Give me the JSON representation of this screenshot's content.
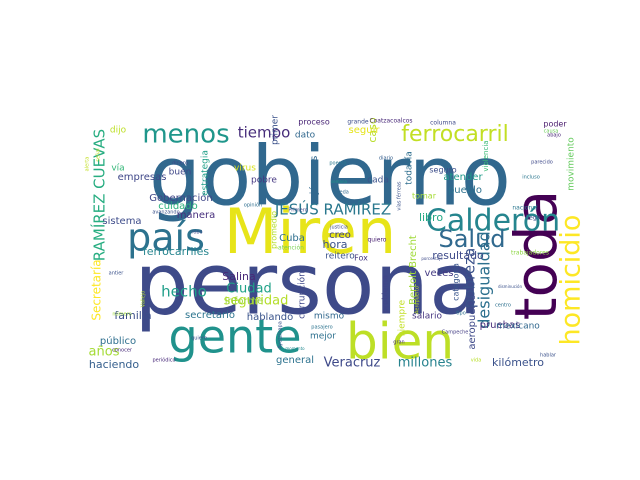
{
  "cloud": {
    "background": "#ffffff",
    "palette": "viridis",
    "words": [
      {
        "text": "gobierno",
        "color": "#31688e"
      },
      {
        "text": "persona",
        "color": "#3e4a89"
      },
      {
        "text": "Miren",
        "color": "#e7e419"
      },
      {
        "text": "toda",
        "color": "#440154"
      },
      {
        "text": "gente",
        "color": "#20928c"
      },
      {
        "text": "bien",
        "color": "#bddf26"
      },
      {
        "text": "país",
        "color": "#2c728e"
      },
      {
        "text": "Calderón",
        "color": "#25858e"
      },
      {
        "text": "homicidio",
        "color": "#fde725"
      },
      {
        "text": "Salud",
        "color": "#30698e"
      },
      {
        "text": "ferrocarril",
        "color": "#c2df23"
      },
      {
        "text": "menos",
        "color": "#1f968b"
      },
      {
        "text": "JESÚS RAMÍREZ",
        "color": "#2a788e"
      },
      {
        "text": "RAMÍREZ CUEVAS",
        "color": "#27ad81"
      },
      {
        "text": "desigualdad",
        "color": "#2d708e"
      },
      {
        "text": "pobreza",
        "color": "#3b528b"
      },
      {
        "text": "tiempo",
        "color": "#472d7b"
      },
      {
        "text": "seguridad",
        "color": "#b5de2b"
      },
      {
        "text": "Secretaría",
        "color": "#fde725"
      },
      {
        "text": "hecho",
        "color": "#1f9e89"
      },
      {
        "text": "millones",
        "color": "#26828e"
      },
      {
        "text": "Veracruz",
        "color": "#3e4989"
      },
      {
        "text": "Ciudad",
        "color": "#1fa187"
      },
      {
        "text": "años",
        "color": "#a5db36"
      },
      {
        "text": "haciendo",
        "color": "#355f8d"
      },
      {
        "text": "kilómetro",
        "color": "#3b528b"
      },
      {
        "text": "ferrocarriles",
        "color": "#25848e"
      },
      {
        "text": "familia",
        "color": "#3c4f8a"
      },
      {
        "text": "resultado",
        "color": "#3e4a89"
      },
      {
        "text": "Salina",
        "color": "#482878"
      },
      {
        "text": "hora",
        "color": "#3b528b"
      },
      {
        "text": "libro",
        "color": "#22a884"
      },
      {
        "text": "caso",
        "color": "#b8de29"
      },
      {
        "text": "seguir",
        "color": "#e5e419"
      },
      {
        "text": "jóvenes",
        "color": "#31688e"
      },
      {
        "text": "pruebas",
        "color": "#472c7a"
      },
      {
        "text": "secretario",
        "color": "#2b748e"
      },
      {
        "text": "Gobernación",
        "color": "#3f4788"
      },
      {
        "text": "hablando",
        "color": "#3a548c"
      },
      {
        "text": "mexicano",
        "color": "#31688e"
      },
      {
        "text": "Cuba",
        "color": "#2e6f8e"
      },
      {
        "text": "sistema",
        "color": "#3e4c8a"
      },
      {
        "text": "empresas",
        "color": "#3f4788"
      },
      {
        "text": "público",
        "color": "#2e6e8e"
      },
      {
        "text": "general",
        "color": "#2c728e"
      },
      {
        "text": "creo",
        "color": "#414487"
      },
      {
        "text": "pueblo",
        "color": "#2c718e"
      },
      {
        "text": "atender",
        "color": "#1f998a"
      },
      {
        "text": "cuidado",
        "color": "#2db27d"
      },
      {
        "text": "manera",
        "color": "#472f7d"
      },
      {
        "text": "veces",
        "color": "#443a83"
      },
      {
        "text": "aeropuerto",
        "color": "#3e4989"
      },
      {
        "text": "Bertolt Brecht",
        "color": "#a0da39"
      },
      {
        "text": "estrategia",
        "color": "#1f9f88"
      },
      {
        "text": "informe",
        "color": "#9dd93b"
      },
      {
        "text": "corrupción",
        "color": "#3f4889"
      },
      {
        "text": "salario",
        "color": "#453581"
      },
      {
        "text": "mismo",
        "color": "#31688e"
      },
      {
        "text": "reitero",
        "color": "#3b528b"
      },
      {
        "text": "mejor",
        "color": "#2d708e"
      },
      {
        "text": "siempre",
        "color": "#c2df23"
      },
      {
        "text": "movimiento",
        "color": "#65cb5e"
      },
      {
        "text": "dato",
        "color": "#31688e"
      },
      {
        "text": "proceso",
        "color": "#482475"
      },
      {
        "text": "poder",
        "color": "#481a6c"
      },
      {
        "text": "virus",
        "color": "#d8e219"
      },
      {
        "text": "cada",
        "color": "#3b528b"
      },
      {
        "text": "pobre",
        "color": "#453781"
      },
      {
        "text": "primer",
        "color": "#3b528b"
      },
      {
        "text": "buen",
        "color": "#3f4788"
      },
      {
        "text": "dijo",
        "color": "#bddf26"
      },
      {
        "text": "vía",
        "color": "#35b779"
      },
      {
        "text": "Fox",
        "color": "#453781"
      },
      {
        "text": "todavía",
        "color": "#2e6e8e"
      },
      {
        "text": "seguro",
        "color": "#3d4e8a"
      },
      {
        "text": "categoría",
        "color": "#39568c"
      },
      {
        "text": "problema",
        "color": "#414487"
      },
      {
        "text": "promedio",
        "color": "#b5de2b"
      },
      {
        "text": "Coatzacoalcos",
        "color": "#482878"
      },
      {
        "text": "grande",
        "color": "#3d4e8a"
      },
      {
        "text": "columna",
        "color": "#3e4989"
      },
      {
        "text": "tomar",
        "color": "#a5db36"
      },
      {
        "text": "violencia",
        "color": "#3aba76"
      },
      {
        "text": "nacional",
        "color": "#2a778e"
      },
      {
        "text": "trabajadores",
        "color": "#8ed645"
      },
      {
        "text": "atención",
        "color": "#7ad151"
      },
      {
        "text": "Primero",
        "color": "#3f4788"
      },
      {
        "text": "Campeche",
        "color": "#433d84"
      },
      {
        "text": "incluso",
        "color": "#2a768e"
      },
      {
        "text": "llegó",
        "color": "#3b528b"
      },
      {
        "text": "quiero",
        "color": "#482071"
      },
      {
        "text": "alerta",
        "color": "#c2df23"
      },
      {
        "text": "abajo",
        "color": "#482878"
      },
      {
        "text": "pasajero",
        "color": "#2c738e"
      },
      {
        "text": "vida",
        "color": "#b8de29"
      },
      {
        "text": "hablar",
        "color": "#3b528b"
      },
      {
        "text": "periódico",
        "color": "#482979"
      },
      {
        "text": "Ayotzinapa",
        "color": "#3b528b"
      },
      {
        "text": "diario",
        "color": "#355e8d"
      },
      {
        "text": "poema",
        "color": "#2a788e"
      },
      {
        "text": "parecido",
        "color": "#3e4989"
      },
      {
        "text": "centro",
        "color": "#2d708e"
      },
      {
        "text": "número",
        "color": "#9fda3a"
      },
      {
        "text": "dinero",
        "color": "#3f4889"
      },
      {
        "text": "robo",
        "color": "#3e4a89"
      },
      {
        "text": "opinión",
        "color": "#2e6e8e"
      },
      {
        "text": "causa",
        "color": "#6ccd5a"
      },
      {
        "text": "Aeropuerto",
        "color": "#c0df25"
      },
      {
        "text": "porcentaje",
        "color": "#3e4a89"
      },
      {
        "text": "disminución",
        "color": "#3b528b"
      },
      {
        "text": "tipo",
        "color": "#2d718e"
      },
      {
        "text": "avanzando",
        "color": "#3b528b"
      },
      {
        "text": "conocer",
        "color": "#472a7a"
      },
      {
        "text": "señal",
        "color": "#c2df23"
      },
      {
        "text": "Vallejo",
        "color": "#b2dd2d"
      },
      {
        "text": "justicia",
        "color": "#3e4989"
      },
      {
        "text": "semana",
        "color": "#1f968b"
      },
      {
        "text": "queda",
        "color": "#306a8e"
      },
      {
        "text": "vías férreas",
        "color": "#3b528b"
      },
      {
        "text": "gran",
        "color": "#472f7d"
      },
      {
        "text": "momento",
        "color": "#23898e"
      },
      {
        "text": "quiere",
        "color": "#3b528b"
      },
      {
        "text": "antier",
        "color": "#3b528b"
      }
    ]
  }
}
